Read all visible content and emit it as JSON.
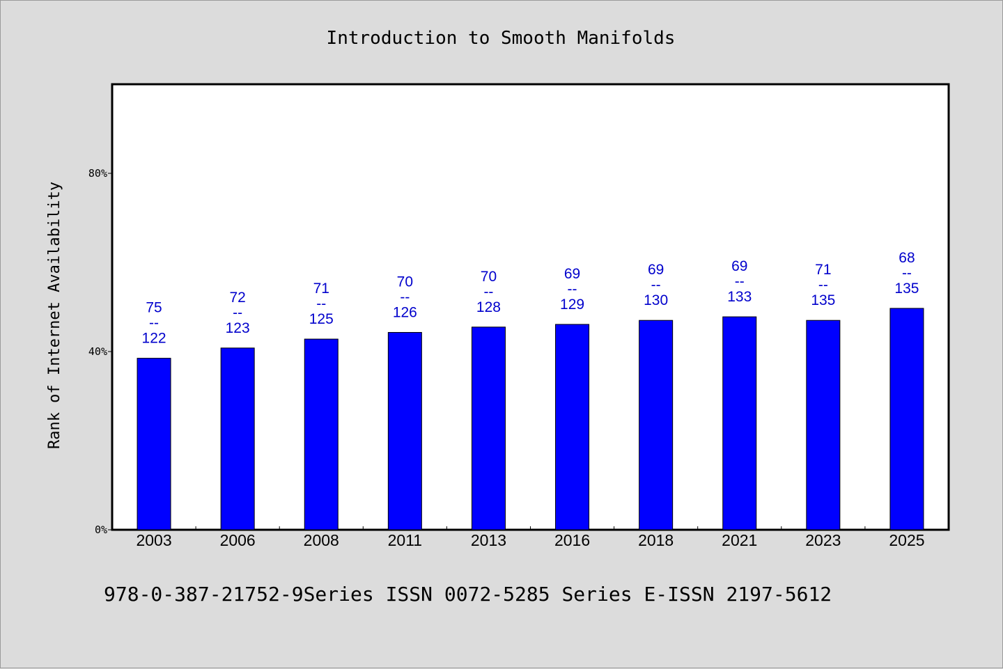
{
  "chart_data": {
    "type": "bar",
    "title": "Introduction to Smooth Manifolds",
    "ylabel": "Rank of Internet Availability",
    "xlabel": "",
    "footer": "978-0-387-21752-9Series ISSN 0072-5285 Series E-ISSN 2197-5612",
    "categories": [
      "2003",
      "2006",
      "2008",
      "2011",
      "2013",
      "2016",
      "2018",
      "2021",
      "2023",
      "2025"
    ],
    "values": [
      0.385,
      0.408,
      0.428,
      0.443,
      0.455,
      0.461,
      0.47,
      0.478,
      0.47,
      0.497
    ],
    "data_labels": [
      [
        "75",
        "--",
        "122"
      ],
      [
        "72",
        "--",
        "123"
      ],
      [
        "71",
        "--",
        "125"
      ],
      [
        "70",
        "--",
        "126"
      ],
      [
        "70",
        "--",
        "128"
      ],
      [
        "69",
        "--",
        "129"
      ],
      [
        "69",
        "--",
        "130"
      ],
      [
        "69",
        "--",
        "133"
      ],
      [
        "71",
        "--",
        "135"
      ],
      [
        "68",
        "--",
        "135"
      ]
    ],
    "ylim": [
      0,
      1.0
    ],
    "yticks": [
      {
        "value": 0,
        "label": "0%"
      },
      {
        "value": 0.4,
        "label": "40%"
      },
      {
        "value": 0.8,
        "label": "80%"
      }
    ],
    "bar_color": "#0000ff",
    "label_color": "#0000cc",
    "background_color": "#dcdcdc",
    "plot_background": "#ffffff",
    "grid": false,
    "legend": "none"
  }
}
